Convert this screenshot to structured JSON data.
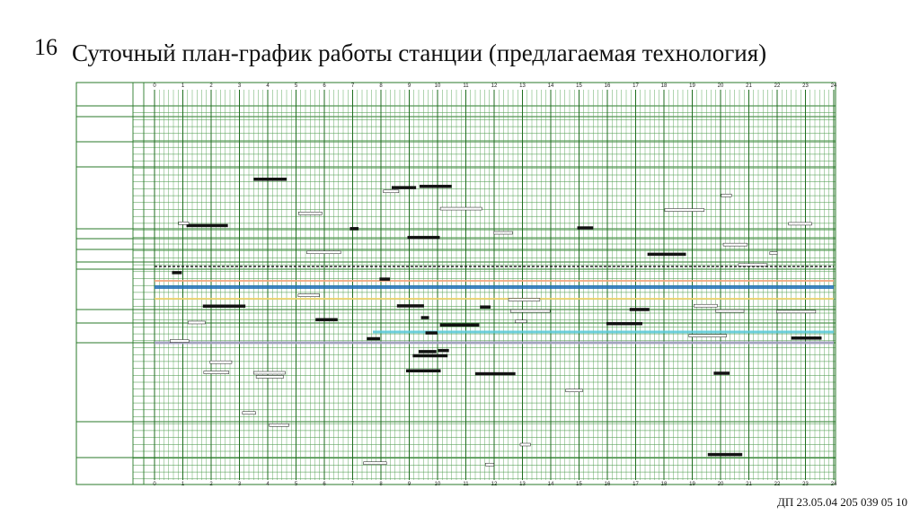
{
  "slide": {
    "number": "16",
    "title": "Суточный план-график работы станции (предлагаемая технология)",
    "footer": "ДП 23.05.04 205 039 05 10"
  },
  "schedule": {
    "hours": [
      "0",
      "1",
      "2",
      "3",
      "4",
      "5",
      "6",
      "7",
      "8",
      "9",
      "10",
      "11",
      "12",
      "13",
      "14",
      "15",
      "16",
      "17",
      "18",
      "19",
      "20",
      "21",
      "22",
      "23",
      "24"
    ]
  }
}
